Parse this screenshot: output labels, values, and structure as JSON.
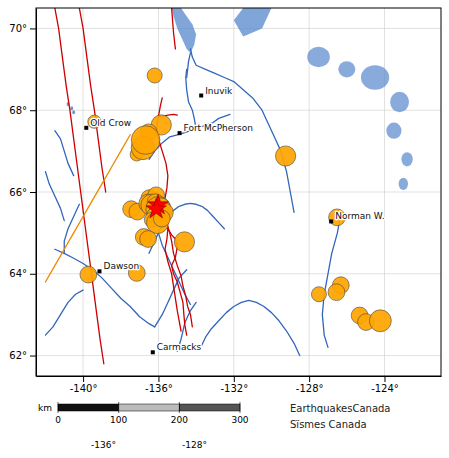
{
  "chart_data": {
    "type": "scatter",
    "xlim": [
      -142.5,
      -121.0
    ],
    "ylim": [
      61.5,
      70.5
    ],
    "xticks": [
      {
        "value": -140,
        "label": "-140°"
      },
      {
        "value": -136,
        "label": "-136°"
      },
      {
        "value": -132,
        "label": "-132°"
      },
      {
        "value": -128,
        "label": "-128°"
      },
      {
        "value": -124,
        "label": "-124°"
      }
    ],
    "yticks": [
      {
        "value": 62,
        "label": "62°"
      },
      {
        "value": 64,
        "label": "64°"
      },
      {
        "value": 66,
        "label": "66°"
      },
      {
        "value": 68,
        "label": "68°"
      },
      {
        "value": 70,
        "label": "70°"
      }
    ],
    "grid": true,
    "series": [
      {
        "type": "polygon",
        "color": "#5588cc",
        "x": [
          -135.3,
          -134.8,
          -134.5,
          -134.2,
          -134.0,
          -134.1,
          -134.3,
          -134.5,
          -134.7,
          -135.0,
          -135.2,
          null,
          -131.5,
          -130.5,
          -130.0,
          -131.5,
          -132.0
        ],
        "y": [
          70.5,
          70.5,
          70.3,
          70.1,
          69.85,
          69.6,
          69.4,
          69.5,
          69.7,
          70.0,
          70.3,
          null,
          69.8,
          70.0,
          70.5,
          70.5,
          70.2
        ]
      },
      {
        "type": "ellipse",
        "color": "#5588cc",
        "x": [
          -127.5,
          -126.0,
          -124.5,
          -123.2,
          -123.5,
          -122.8,
          -123.0
        ],
        "y": [
          69.3,
          69.0,
          68.8,
          68.2,
          67.5,
          66.8,
          66.2
        ],
        "width": [
          1.2,
          0.9,
          1.5,
          1.0,
          0.8,
          0.6,
          0.5
        ],
        "height": [
          0.5,
          0.4,
          0.6,
          0.5,
          0.4,
          0.35,
          0.3
        ]
      },
      {
        "type": "ellipse",
        "color": "#3366bb",
        "x": [
          -140.8,
          -140.6,
          -140.5
        ],
        "y": [
          68.15,
          68.05,
          67.95
        ],
        "width": [
          0.15,
          0.15,
          0.15
        ],
        "height": [
          0.1,
          0.1,
          0.1
        ]
      },
      {
        "type": "line",
        "color": "#3366bb",
        "x": [
          -128.8,
          -129.0,
          -129.2,
          -129.5,
          -129.8,
          -130.2,
          -130.5,
          -131.0,
          -131.5,
          -132.0,
          -132.5,
          -133.0,
          -133.5,
          -134.0,
          -134.2,
          -134.3,
          null,
          -136.5,
          -136.2,
          -135.8,
          -135.4,
          -135.0,
          -134.6,
          -134.3,
          -134.0,
          -133.7,
          -133.4,
          -133.1,
          -132.8,
          -132.5,
          -132.2,
          null,
          -134.0,
          -134.1,
          -134.2,
          -134.4,
          -134.5,
          -134.55,
          -134.5,
          null,
          -134.5,
          -134.45,
          -134.4,
          -134.3,
          null,
          -141.5,
          -141.0,
          -140.5,
          -140.0,
          -139.5,
          -139.0,
          -138.5,
          -138.0,
          -137.5,
          -137.0,
          -136.5,
          -136.2,
          null,
          -141.0,
          -141.0,
          -140.8,
          -140.5,
          -140.2,
          null,
          -136.2,
          -135.8,
          -135.5,
          -135.2,
          -134.9,
          -134.5,
          null,
          -136.5,
          -136.2,
          -136.0,
          -135.8,
          -135.5,
          -135.2,
          -134.9,
          -134.6,
          -134.3,
          -134.0,
          -133.7,
          -133.4,
          -133.1,
          -132.8,
          -132.5,
          null,
          -136.0,
          -135.8,
          -135.5,
          -135.2,
          -134.9,
          -134.6,
          -134.3,
          null,
          -128.5,
          -128.8,
          -129.2,
          -129.6,
          -130.0,
          -130.4,
          -130.8,
          -131.2,
          -131.6,
          -132.0,
          -132.4,
          -132.8,
          -133.2,
          -133.5,
          -133.7,
          null,
          -127.0,
          -127.2,
          -127.3,
          -127.2,
          -127.0,
          -126.8,
          -126.5,
          -126.3,
          null,
          -142.0,
          -141.8,
          -141.5,
          -141.2,
          -141.0,
          null,
          -141.5,
          -141.2,
          -141.0,
          -140.8,
          -140.5,
          null,
          -142.0,
          -141.6,
          -141.2,
          -140.8,
          -140.4,
          -140.0,
          null,
          -135.0,
          -134.8,
          -134.6,
          -134.3,
          -134.0
        ],
        "y": [
          65.5,
          66.0,
          66.5,
          67.0,
          67.3,
          67.7,
          68.0,
          68.3,
          68.5,
          68.7,
          68.8,
          68.9,
          69.0,
          69.1,
          69.3,
          69.5,
          null,
          66.8,
          67.0,
          67.2,
          67.35,
          67.4,
          67.45,
          67.5,
          67.55,
          67.6,
          67.65,
          67.7,
          67.8,
          67.85,
          67.9,
          null,
          67.55,
          67.8,
          68.0,
          68.2,
          68.5,
          68.8,
          69.0,
          null,
          68.8,
          69.0,
          69.2,
          69.4,
          null,
          64.6,
          64.5,
          64.38,
          64.25,
          64.1,
          63.9,
          63.65,
          63.4,
          63.2,
          62.95,
          62.78,
          62.7,
          null,
          64.5,
          64.8,
          65.1,
          65.4,
          65.7,
          null,
          62.7,
          63.0,
          63.3,
          63.6,
          63.9,
          64.1,
          null,
          64.5,
          64.8,
          65.0,
          65.2,
          65.4,
          65.55,
          65.65,
          65.7,
          65.72,
          65.7,
          65.65,
          65.55,
          65.4,
          65.25,
          65.1,
          null,
          65.0,
          64.7,
          64.4,
          64.1,
          63.8,
          63.5,
          63.25,
          null,
          62.0,
          62.3,
          62.6,
          62.85,
          63.05,
          63.2,
          63.3,
          63.35,
          63.3,
          63.2,
          63.05,
          62.85,
          62.65,
          62.45,
          62.25,
          null,
          62.2,
          62.5,
          63.0,
          63.5,
          64.0,
          64.5,
          65.0,
          65.5,
          null,
          66.5,
          66.2,
          65.9,
          65.6,
          65.3,
          null,
          67.5,
          67.3,
          67.0,
          66.7,
          66.4,
          null,
          62.5,
          62.7,
          63.0,
          63.3,
          63.5,
          63.6,
          null,
          62.1,
          62.4,
          62.8,
          63.1,
          63.3
        ]
      },
      {
        "type": "line",
        "color": "#cc0000",
        "x": [
          -141.5,
          -141.3,
          -141.1,
          -140.9,
          -140.7,
          -140.5,
          -140.3,
          -140.1,
          -139.9,
          -139.7,
          -139.5,
          -139.3,
          -139.1,
          -138.9,
          null,
          -140.2,
          -140.0,
          -139.8,
          -139.6,
          -139.4,
          -139.2,
          -139.0,
          -138.8,
          null,
          -135.8,
          -135.9,
          -136.0,
          -136.1,
          -136.0,
          -135.8,
          -135.6,
          -135.5,
          -135.55,
          -135.65,
          -135.7,
          -135.6,
          -135.5,
          -135.55,
          -135.65,
          -135.5,
          -135.3,
          -135.2,
          -135.1,
          -135.0,
          -134.9,
          -134.8,
          null,
          -136.0,
          -135.8,
          -135.5,
          -135.2,
          -135.0,
          null,
          -135.3,
          -135.25,
          -135.2,
          -135.1,
          null,
          -135.5,
          -135.3,
          -135.1,
          -135.0,
          -135.1,
          -135.3,
          -135.2,
          -135.0,
          -134.85,
          -134.7,
          -134.65,
          -134.6,
          -134.5,
          null,
          -135.8,
          -135.6,
          -135.5,
          -135.4,
          -135.3,
          -135.2,
          -135.0,
          -134.8,
          -134.7,
          -134.55,
          -134.45,
          -134.3,
          -134.2
        ],
        "y": [
          70.5,
          70.0,
          69.3,
          68.6,
          68.0,
          67.3,
          66.6,
          65.9,
          65.2,
          64.5,
          63.8,
          63.1,
          62.4,
          61.8,
          null,
          70.5,
          70.0,
          69.3,
          68.6,
          68.0,
          67.3,
          66.6,
          66.0,
          null,
          68.3,
          68.1,
          67.85,
          67.6,
          67.3,
          67.0,
          66.7,
          66.4,
          66.1,
          65.85,
          65.6,
          65.35,
          65.1,
          64.85,
          64.6,
          64.3,
          64.0,
          63.7,
          63.4,
          63.1,
          62.85,
          62.6,
          null,
          67.85,
          67.85,
          67.88,
          67.9,
          67.88,
          null,
          70.5,
          70.2,
          69.9,
          69.5,
          null,
          65.1,
          64.95,
          64.85,
          64.65,
          64.4,
          64.2,
          64.0,
          63.8,
          63.55,
          63.3,
          63.0,
          62.75,
          62.5,
          null,
          65.6,
          65.4,
          65.15,
          65.0,
          64.8,
          64.5,
          64.2,
          63.95,
          63.7,
          63.45,
          63.2,
          63.0,
          62.7
        ]
      },
      {
        "type": "line",
        "color": "#ee8800",
        "x": [
          -142.0,
          -141.5,
          -141.0,
          -140.5,
          -140.0,
          -139.5,
          -139.0,
          -138.5,
          -138.0,
          -137.5
        ],
        "y": [
          63.8,
          64.2,
          64.6,
          65.0,
          65.4,
          65.8,
          66.2,
          66.6,
          67.0,
          67.4
        ]
      },
      {
        "type": "scatter",
        "marker": "circle",
        "color": "#FFA500",
        "x": [
          -136.2,
          -139.4,
          -135.85,
          -136.52,
          -137.15,
          -136.82,
          -136.68,
          -129.25,
          -137.45,
          -137.12,
          -136.48,
          -136.12,
          -136.55,
          -136.35,
          -136.15,
          -136.0,
          -135.85,
          -135.75,
          -136.18,
          -136.35,
          -136.05,
          -135.82,
          -136.78,
          -136.55,
          -134.62,
          -139.72,
          -137.15,
          -126.52,
          -126.32,
          -126.55,
          -127.48,
          -125.32,
          -124.98,
          -124.22
        ],
        "y": [
          68.85,
          67.72,
          67.64,
          67.46,
          66.92,
          67.08,
          67.27,
          66.88,
          65.58,
          65.52,
          65.85,
          65.92,
          65.72,
          65.68,
          65.75,
          65.58,
          65.65,
          65.5,
          65.42,
          65.32,
          65.25,
          65.35,
          64.9,
          64.85,
          64.78,
          63.98,
          64.02,
          65.38,
          63.72,
          63.55,
          63.5,
          62.98,
          62.82,
          62.85
        ],
        "size": [
          8,
          7,
          11,
          9,
          7,
          13,
          16,
          11,
          9,
          9,
          9,
          9,
          10,
          12,
          9,
          14,
          9,
          11,
          9,
          8,
          12,
          9,
          9,
          9,
          11,
          9,
          9,
          9,
          9,
          9,
          8,
          9,
          9,
          12
        ]
      },
      {
        "type": "scatter",
        "marker": "star",
        "color": "#ff0000",
        "x": [
          -136.02,
          -136.12
        ],
        "y": [
          65.68,
          65.58
        ]
      },
      {
        "type": "scatter",
        "marker": "square",
        "color": "#000000",
        "x": [
          -133.73,
          -139.83,
          -134.88,
          -126.83,
          -139.13,
          -136.3
        ],
        "y": [
          68.36,
          67.57,
          67.44,
          65.28,
          64.06,
          62.08
        ],
        "labels": [
          "Inuvik",
          "Old Crow",
          "Fort McPherson",
          "Norman W.",
          "Dawson",
          "Carmacks"
        ]
      }
    ],
    "scalebar": {
      "values": [
        0,
        100,
        200,
        300
      ],
      "unit": "km"
    },
    "footer": [
      "-136°",
      "-128°"
    ],
    "credits": [
      "EarthquakesCanada",
      "Sïsmes Canada"
    ]
  }
}
